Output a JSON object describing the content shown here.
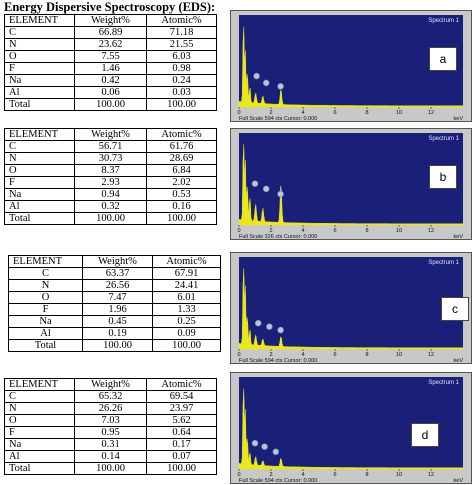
{
  "page_title": "Energy Dispersive Spectroscopy (EDS):",
  "tables": [
    {
      "headers": [
        "ELEMENT",
        "Weight%",
        "Atomic%"
      ],
      "rows": [
        [
          "C",
          "66.89",
          "71.18"
        ],
        [
          "N",
          "23.62",
          "21.55"
        ],
        [
          "O",
          "7.55",
          "6.03"
        ],
        [
          "F",
          "1.46",
          "0.98"
        ],
        [
          "Na",
          "0.42",
          "0.24"
        ],
        [
          "Al",
          "0.06",
          "0.03"
        ],
        [
          "Total",
          "100.00",
          "100.00"
        ]
      ]
    },
    {
      "headers": [
        "ELEMENT",
        "Weight%",
        "Atomic%"
      ],
      "rows": [
        [
          "C",
          "56.71",
          "61.76"
        ],
        [
          "N",
          "30.73",
          "28.69"
        ],
        [
          "O",
          "8.37",
          "6.84"
        ],
        [
          "F",
          "2.93",
          "2.02"
        ],
        [
          "Na",
          "0.94",
          "0.53"
        ],
        [
          "Al",
          "0.32",
          "0.16"
        ],
        [
          "Total",
          "100.00",
          "100.00"
        ]
      ]
    },
    {
      "headers": [
        "ELEMENT",
        "Weight%",
        "Atomic%"
      ],
      "rows": [
        [
          "C",
          "63.37",
          "67.91"
        ],
        [
          "N",
          "26.56",
          "24.41"
        ],
        [
          "O",
          "7.47",
          "6.01"
        ],
        [
          "F",
          "1.96",
          "1.33"
        ],
        [
          "Na",
          "0.45",
          "0.25"
        ],
        [
          "Al",
          "0.19",
          "0.09"
        ],
        [
          "Total",
          "100.00",
          "100.00"
        ]
      ]
    },
    {
      "headers": [
        "ELEMENT",
        "Weight%",
        "Atomic%"
      ],
      "rows": [
        [
          "C",
          "65.32",
          "69.54"
        ],
        [
          "N",
          "26.26",
          "23.97"
        ],
        [
          "O",
          "7.03",
          "5.62"
        ],
        [
          "F",
          "0.95",
          "0.64"
        ],
        [
          "Na",
          "0.31",
          "0.17"
        ],
        [
          "Al",
          "0.14",
          "0.07"
        ],
        [
          "Total",
          "100.00",
          "100.00"
        ]
      ]
    }
  ],
  "chart_data": [
    {
      "type": "area",
      "title": "Spectrum 1",
      "panel_label": "a",
      "xlabel": "keV",
      "xlim": [
        0,
        14
      ],
      "x_ticks": [
        0,
        2,
        4,
        6,
        8,
        10,
        12
      ],
      "footer": "Full Scale 594 cts Cursor: 0.000",
      "colors": {
        "background": "#1a1f78",
        "spectrum": "#e8e81a",
        "frame": "#c8c8c8",
        "marker": "#b8c4dc"
      },
      "peaks": [
        {
          "element": "C",
          "energy": 0.28,
          "value": 1.0
        },
        {
          "element": "N",
          "energy": 0.39,
          "value": 0.62
        },
        {
          "element": "O",
          "energy": 0.52,
          "value": 0.38
        },
        {
          "element": "F",
          "energy": 0.68,
          "value": 0.2
        },
        {
          "element": "Na",
          "energy": 1.04,
          "value": 0.12
        },
        {
          "element": "Al",
          "energy": 1.49,
          "value": 0.09
        },
        {
          "element": "",
          "energy": 2.62,
          "value": 0.18
        }
      ],
      "markers": [
        {
          "energy": 1.1,
          "level": 0.36
        },
        {
          "energy": 1.7,
          "level": 0.28
        },
        {
          "energy": 2.6,
          "level": 0.24
        }
      ]
    },
    {
      "type": "area",
      "title": "Spectrum 1",
      "panel_label": "b",
      "xlabel": "keV",
      "xlim": [
        0,
        14
      ],
      "x_ticks": [
        0,
        2,
        4,
        6,
        8,
        10,
        12
      ],
      "footer": "Full Scale 326 cts Cursor: 0.000",
      "colors": {
        "background": "#1a1f78",
        "spectrum": "#e8e81a",
        "frame": "#c8c8c8",
        "marker": "#b8c4dc"
      },
      "peaks": [
        {
          "element": "C",
          "energy": 0.28,
          "value": 1.0
        },
        {
          "element": "N",
          "energy": 0.39,
          "value": 0.72
        },
        {
          "element": "O",
          "energy": 0.52,
          "value": 0.45
        },
        {
          "element": "F",
          "energy": 0.68,
          "value": 0.3
        },
        {
          "element": "Na",
          "energy": 1.04,
          "value": 0.2
        },
        {
          "element": "Al",
          "energy": 1.49,
          "value": 0.16
        },
        {
          "element": "",
          "energy": 2.62,
          "value": 0.46
        }
      ],
      "markers": [
        {
          "energy": 1.0,
          "level": 0.48
        },
        {
          "energy": 1.7,
          "level": 0.42
        },
        {
          "energy": 2.6,
          "level": 0.36
        }
      ]
    },
    {
      "type": "area",
      "title": "Spectrum 1",
      "panel_label": "c",
      "xlabel": "keV",
      "xlim": [
        0,
        14
      ],
      "x_ticks": [
        0,
        2,
        4,
        6,
        8,
        10,
        12
      ],
      "footer": "Full Scale 594 cts Cursor: 0.000",
      "colors": {
        "background": "#1a1f78",
        "spectrum": "#e8e81a",
        "frame": "#c8c8c8",
        "marker": "#b8c4dc"
      },
      "peaks": [
        {
          "element": "C",
          "energy": 0.28,
          "value": 1.0
        },
        {
          "element": "N",
          "energy": 0.39,
          "value": 0.7
        },
        {
          "element": "O",
          "energy": 0.52,
          "value": 0.36
        },
        {
          "element": "F",
          "energy": 0.68,
          "value": 0.2
        },
        {
          "element": "Na",
          "energy": 1.04,
          "value": 0.12
        },
        {
          "element": "Al",
          "energy": 1.49,
          "value": 0.08
        },
        {
          "element": "",
          "energy": 2.62,
          "value": 0.12
        }
      ],
      "markers": [
        {
          "energy": 1.2,
          "level": 0.3
        },
        {
          "energy": 1.9,
          "level": 0.26
        },
        {
          "energy": 2.6,
          "level": 0.22
        }
      ]
    },
    {
      "type": "area",
      "title": "Spectrum 1",
      "panel_label": "d",
      "xlabel": "keV",
      "xlim": [
        0,
        14
      ],
      "x_ticks": [
        0,
        2,
        4,
        6,
        8,
        10,
        12
      ],
      "footer": "Full Scale 594 cts Cursor: 0.000",
      "colors": {
        "background": "#1a1f78",
        "spectrum": "#e8e81a",
        "frame": "#c8c8c8",
        "marker": "#b8c4dc"
      },
      "peaks": [
        {
          "element": "C",
          "energy": 0.28,
          "value": 1.0
        },
        {
          "element": "N",
          "energy": 0.39,
          "value": 0.66
        },
        {
          "element": "O",
          "energy": 0.52,
          "value": 0.34
        },
        {
          "element": "F",
          "energy": 0.68,
          "value": 0.16
        },
        {
          "element": "Na",
          "energy": 1.04,
          "value": 0.1
        },
        {
          "element": "Al",
          "energy": 1.49,
          "value": 0.06
        },
        {
          "element": "",
          "energy": 2.62,
          "value": 0.1
        }
      ],
      "markers": [
        {
          "energy": 1.0,
          "level": 0.3
        },
        {
          "energy": 1.6,
          "level": 0.26
        },
        {
          "energy": 2.3,
          "level": 0.2
        }
      ]
    }
  ]
}
